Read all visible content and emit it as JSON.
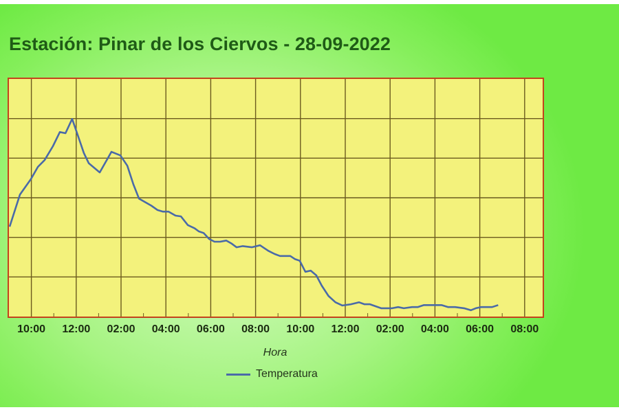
{
  "page": {
    "title": "Estación: Pinar de los Ciervos - 28-09-2022"
  },
  "colors": {
    "title": "#1f5b16",
    "plot_background": "#f3f27c",
    "plot_border": "#c4421c",
    "grid": "#6b5a1e",
    "series_line": "#4a6aa8"
  },
  "chart_data": {
    "type": "line",
    "title": "Estación: Pinar de los Ciervos - 28-09-2022",
    "xlabel": "Hora",
    "ylabel": "",
    "x_tick_labels": [
      "10:00",
      "12:00",
      "02:00",
      "04:00",
      "06:00",
      "08:00",
      "10:00",
      "12:00",
      "02:00",
      "04:00",
      "06:00",
      "08:00"
    ],
    "x_domain_hours": [
      0,
      23.85
    ],
    "x_domain_note": "hours elapsed from ~09:00 (plot left edge); 10:00 tick at 1h, ticks every 2h",
    "y_units": "relative grid units (no y tick labels shown; 6 horizontal grid bands)",
    "ylim": [
      0,
      6
    ],
    "grid": true,
    "legend_position": "bottom",
    "series": [
      {
        "name": "Temperatura",
        "color": "#4a6aa8",
        "x": [
          0.03,
          0.49,
          0.98,
          1.29,
          1.59,
          1.96,
          2.27,
          2.52,
          2.82,
          3.04,
          3.34,
          3.56,
          4.05,
          4.57,
          4.97,
          5.28,
          5.55,
          5.8,
          6.1,
          6.35,
          6.63,
          6.87,
          7.12,
          7.43,
          7.67,
          7.98,
          8.28,
          8.47,
          8.68,
          8.93,
          9.17,
          9.42,
          9.69,
          9.94,
          10.15,
          10.43,
          10.83,
          11.2,
          11.57,
          11.85,
          12.09,
          12.34,
          12.55,
          12.76,
          12.97,
          13.22,
          13.46,
          13.71,
          13.95,
          14.25,
          14.56,
          14.87,
          15.25,
          15.61,
          15.86,
          16.1,
          16.35,
          16.6,
          16.84,
          17.09,
          17.36,
          17.61,
          17.98,
          18.23,
          18.51,
          18.74,
          19.02,
          19.29,
          19.59,
          19.9,
          20.3,
          20.6,
          20.82,
          21.06,
          21.24,
          21.55,
          21.82
        ],
        "values": [
          2.27,
          3.08,
          3.47,
          3.78,
          3.95,
          4.3,
          4.66,
          4.63,
          4.99,
          4.63,
          4.13,
          3.87,
          3.64,
          4.16,
          4.07,
          3.81,
          3.34,
          2.98,
          2.88,
          2.8,
          2.69,
          2.65,
          2.65,
          2.55,
          2.53,
          2.31,
          2.23,
          2.15,
          2.11,
          1.96,
          1.89,
          1.89,
          1.92,
          1.84,
          1.75,
          1.78,
          1.75,
          1.8,
          1.66,
          1.58,
          1.53,
          1.53,
          1.53,
          1.45,
          1.41,
          1.13,
          1.16,
          1.04,
          0.78,
          0.52,
          0.36,
          0.28,
          0.31,
          0.36,
          0.31,
          0.31,
          0.26,
          0.21,
          0.21,
          0.21,
          0.24,
          0.21,
          0.24,
          0.24,
          0.29,
          0.29,
          0.29,
          0.29,
          0.24,
          0.24,
          0.21,
          0.16,
          0.21,
          0.24,
          0.24,
          0.24,
          0.29
        ]
      }
    ]
  },
  "axis": {
    "x_title": "Hora"
  },
  "legend": {
    "items": [
      {
        "label": "Temperatura",
        "icon": "line-swatch"
      }
    ]
  }
}
